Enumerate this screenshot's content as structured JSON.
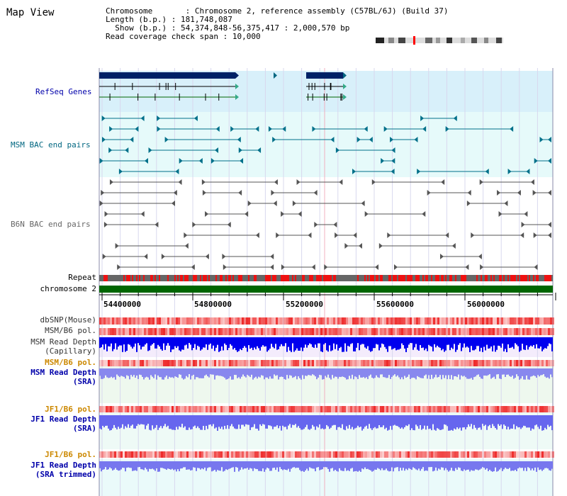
{
  "view_title": "Map View",
  "info": {
    "chromosome_key": "Chromosome",
    "chromosome_val": "Chromosome 2, reference assembly (C57BL/6J) (Build 37)",
    "length_key": "Length (b.p.)",
    "length_val": "181,748,087",
    "show_key": "Show (b.p.)",
    "show_val": "54,374,848-56,375,417 : 2,000,570 bp",
    "span_key": "Read coverage check span",
    "span_val": "10,000"
  },
  "tracks": {
    "refseq": "RefSeq Genes",
    "msm_bac": "MSM BAC end pairs",
    "b6n_bac": "B6N BAC end pairs",
    "repeat": "Repeat",
    "chrom": "chromosome 2",
    "dbsnp": "dbSNP(Mouse)",
    "msm_pol1": "MSM/B6 pol.",
    "msm_depth_cap_1": "MSM Read Depth",
    "msm_depth_cap_2": "(Capillary)",
    "msm_pol2": "MSM/B6 pol.",
    "msm_depth_sra_1": "MSM Read Depth",
    "msm_depth_sra_2": "(SRA)",
    "jf1_pol1": "JF1/B6 pol.",
    "jf1_depth_sra_1": "JF1 Read Depth",
    "jf1_depth_sra_2": "(SRA)",
    "jf1_pol2": "JF1/B6 pol.",
    "jf1_depth_trim_1": "JF1 Read Depth",
    "jf1_depth_trim_2": "(SRA trimmed)"
  },
  "axis": {
    "ticks": [
      "54400000",
      "54800000",
      "55200000",
      "55600000",
      "56000000"
    ]
  },
  "colors": {
    "label_blue": "#0000aa",
    "label_teal": "#006680",
    "label_gray": "#666666",
    "label_orange": "#cc8800",
    "chrom_green": "#006600",
    "refseq_bg": "#d8f0fa",
    "msm_bg": "#e6fafa"
  }
}
